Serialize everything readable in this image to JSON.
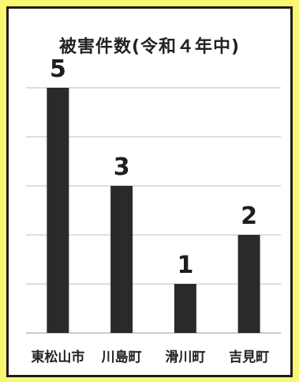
{
  "chart_data": {
    "type": "bar",
    "title": "被害件数(令和４年中)",
    "categories": [
      "東松山市",
      "川島町",
      "滑川町",
      "吉見町"
    ],
    "values": [
      5,
      3,
      1,
      2
    ],
    "ylim": [
      0,
      5
    ],
    "grid": true,
    "xlabel": "",
    "ylabel": "",
    "colors": {
      "bar": "#2a2a2a",
      "grid": "#bcbcbc",
      "background": "#ffffff",
      "frame": "#fbf66f"
    }
  }
}
